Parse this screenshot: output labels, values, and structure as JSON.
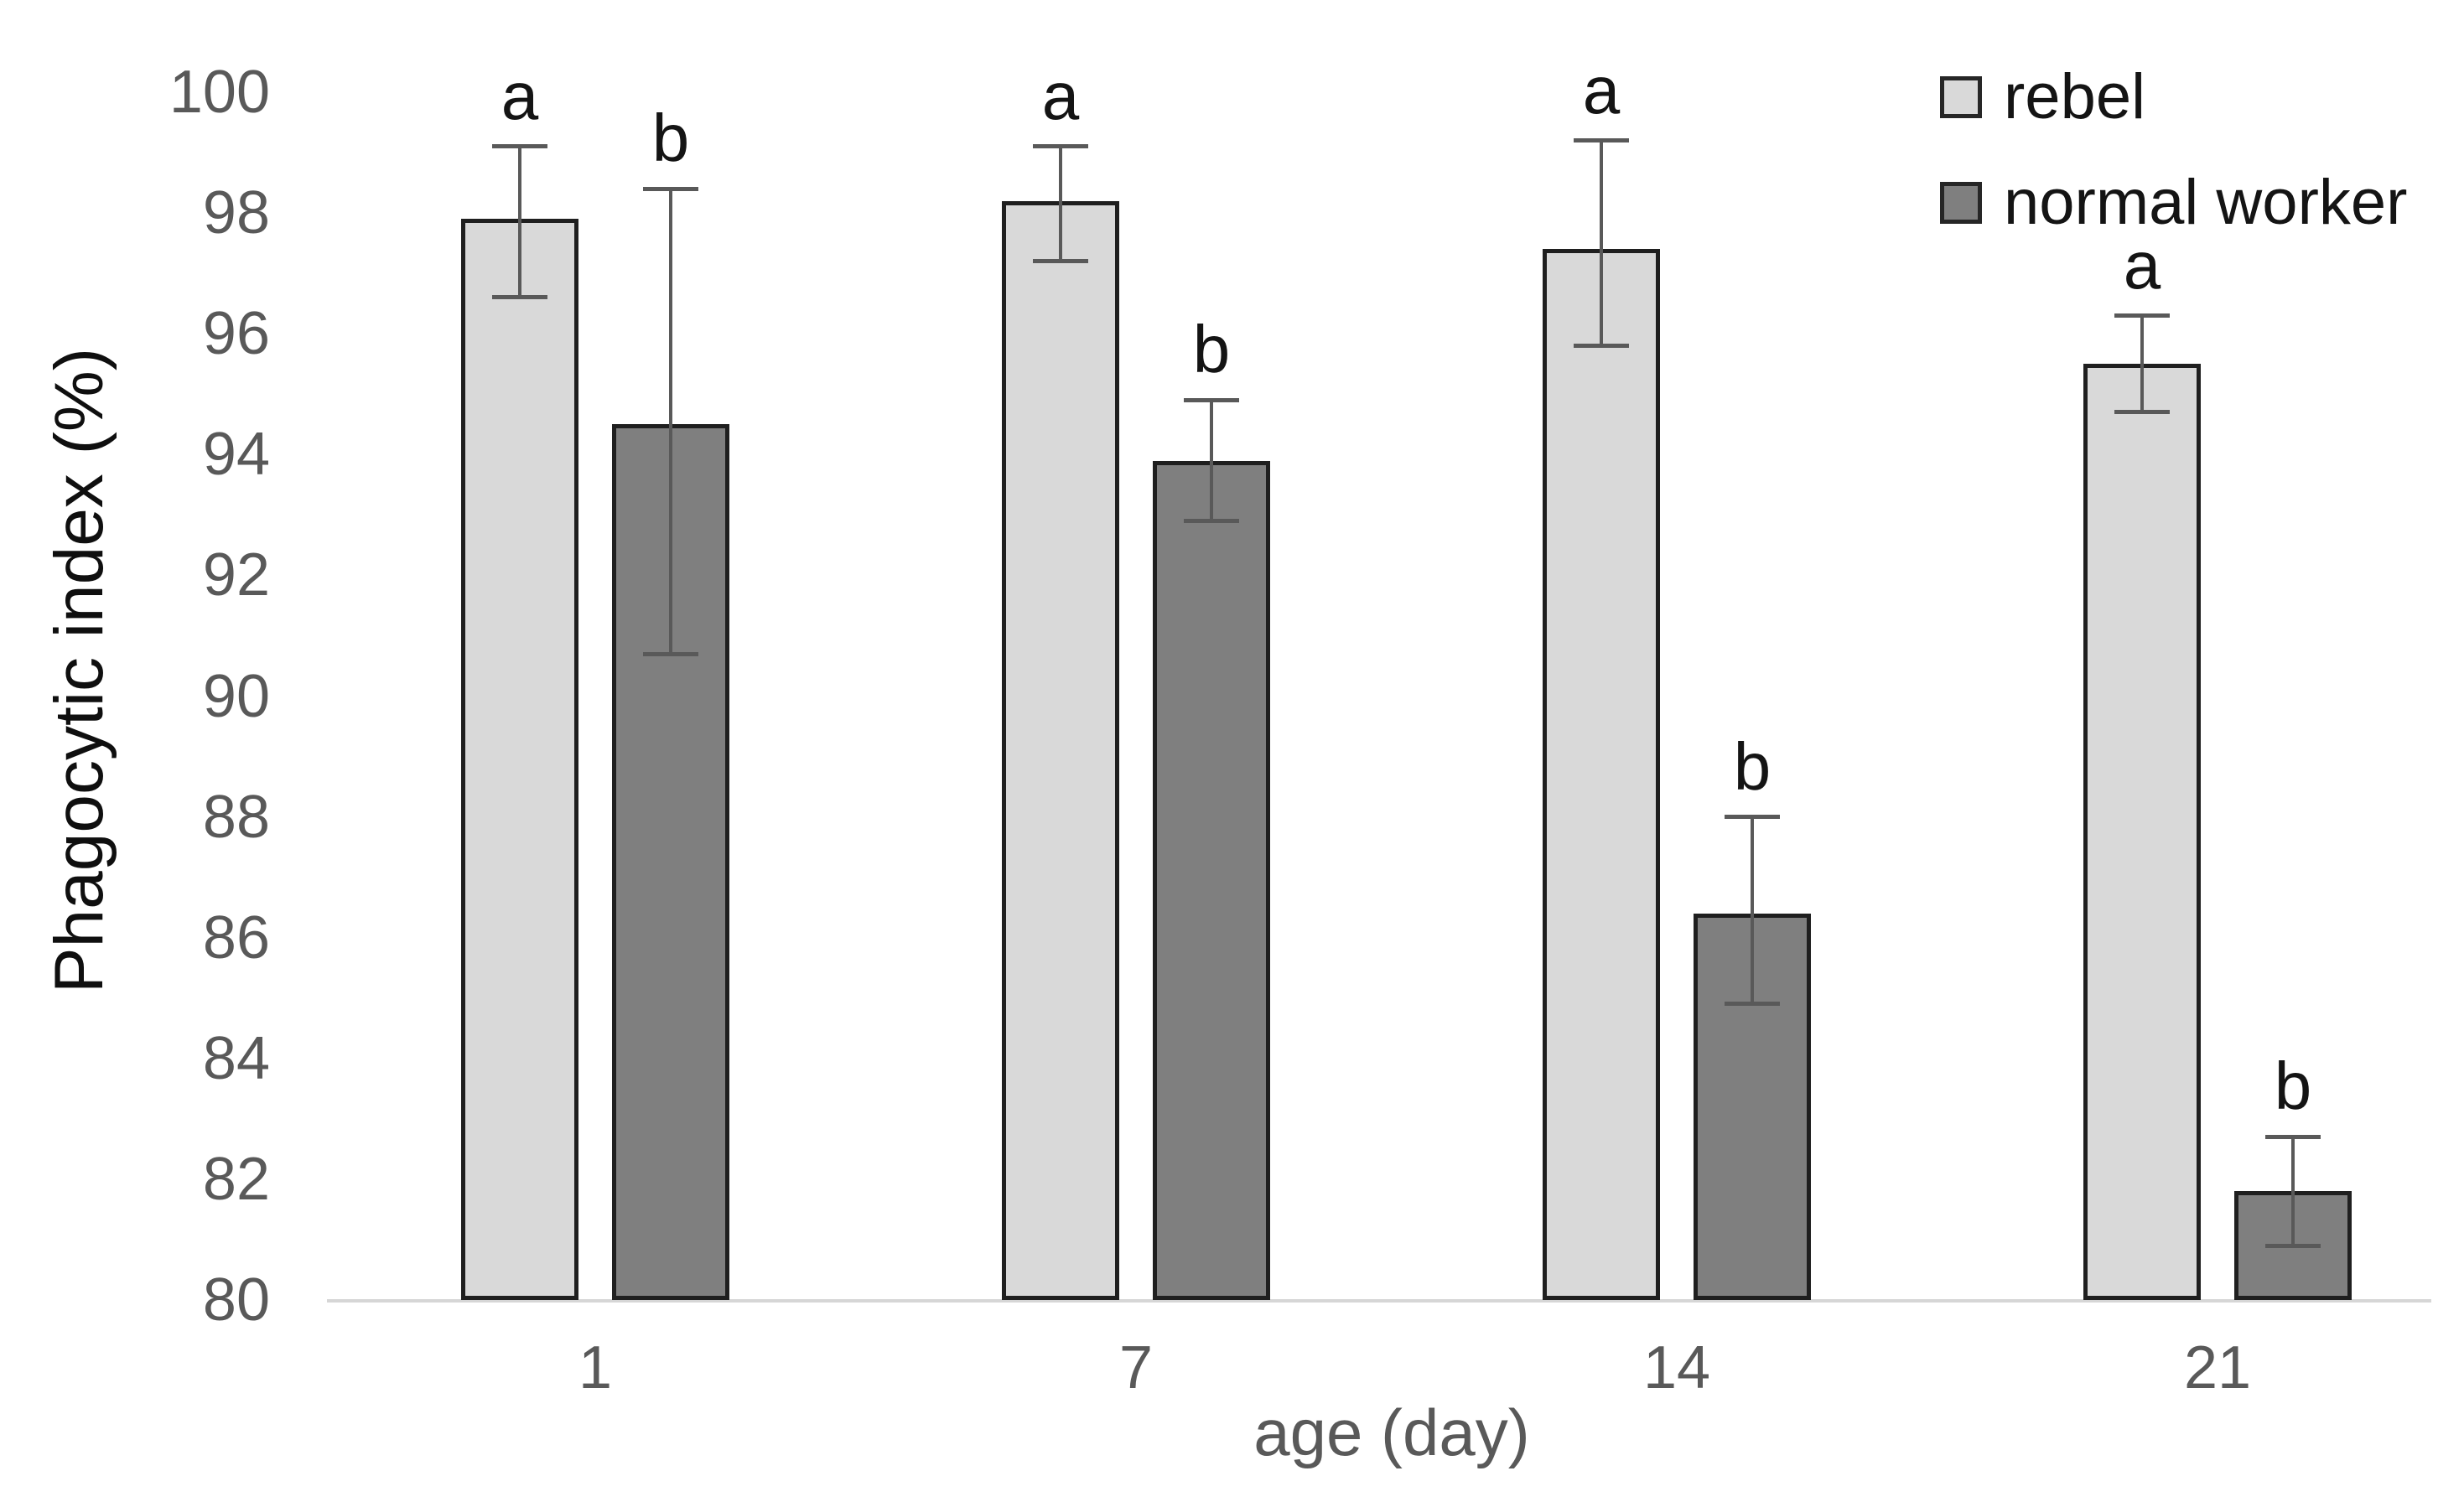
{
  "chart_data": {
    "type": "bar",
    "title": "",
    "xlabel": "age (day)",
    "ylabel": "Phagocytic index (%)",
    "ylim": [
      80,
      100
    ],
    "ytick_step": 2,
    "ytick_labels": [
      "100",
      "98",
      "96",
      "94",
      "92",
      "90",
      "88",
      "86",
      "84",
      "82",
      "80"
    ],
    "categories": [
      "1",
      "7",
      "14",
      "21"
    ],
    "grid": false,
    "legend_position": "top-right",
    "series": [
      {
        "name": "rebel",
        "fill": "#d9d9d9",
        "values": [
          97.9,
          98.2,
          97.4,
          95.5
        ],
        "error_up": [
          1.2,
          0.9,
          1.8,
          0.8
        ],
        "error_down": [
          1.3,
          1.0,
          1.6,
          0.8
        ],
        "sig_letters": [
          "a",
          "a",
          "a",
          "a"
        ]
      },
      {
        "name": "normal worker",
        "fill": "#7f7f7f",
        "values": [
          94.5,
          93.9,
          86.4,
          81.8
        ],
        "error_up": [
          3.9,
          1.0,
          1.6,
          0.9
        ],
        "error_down": [
          3.8,
          1.0,
          1.5,
          0.9
        ],
        "sig_letters": [
          "b",
          "b",
          "b",
          "b"
        ]
      }
    ]
  },
  "style": {
    "background": "#ffffff",
    "bar_border": "#1f1f1f",
    "error_bar_color": "#595959",
    "axis_line_color": "#d6d6d6",
    "tick_label_color": "#595959",
    "x_title_color": "#595959",
    "y_title_color": "#0f0f0f",
    "letter_color": "#141414",
    "legend_text_color": "#141414",
    "legend_swatch_border": "#262626"
  }
}
